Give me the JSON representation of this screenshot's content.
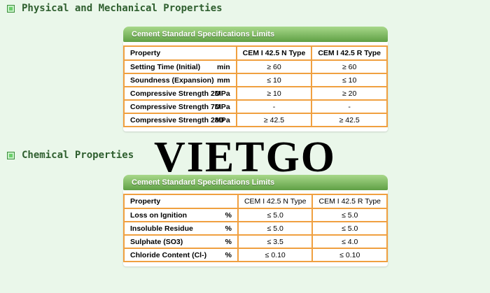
{
  "sections": {
    "physical": {
      "heading": "Physical and Mechanical Properties",
      "panel_title": "Cement Standard Specifications Limits",
      "columns": [
        "Property",
        "CEM I 42.5 N Type",
        "CEM I 42.5 R Type"
      ],
      "rows": [
        {
          "property": "Setting Time (Initial)",
          "unit": "min",
          "n": "≥ 60",
          "r": "≥ 60"
        },
        {
          "property": "Soundness (Expansion)",
          "unit": "mm",
          "n": "≤ 10",
          "r": "≤ 10"
        },
        {
          "property": "Compressive Strength 2D",
          "unit": "MPa",
          "n": "≥ 10",
          "r": "≥ 20"
        },
        {
          "property": "Compressive Strength 7D",
          "unit": "MPa",
          "n": "-",
          "r": "-"
        },
        {
          "property": "Compressive Strength 28D",
          "unit": "MPa",
          "n": "≥ 42.5",
          "r": "≥ 42.5"
        }
      ]
    },
    "chemical": {
      "heading": "Chemical Properties",
      "panel_title": "Cement Standard Specifications Limits",
      "columns": [
        "Property",
        "CEM I 42.5 N Type",
        "CEM I 42.5 R Type"
      ],
      "rows": [
        {
          "property": "Loss on Ignition",
          "unit": "%",
          "n": "≤ 5.0",
          "r": "≤ 5.0"
        },
        {
          "property": "Insoluble Residue",
          "unit": "%",
          "n": "≤ 5.0",
          "r": "≤ 5.0"
        },
        {
          "property": "Sulphate  (SO3)",
          "unit": "%",
          "n": "≤ 3.5",
          "r": "≤ 4.0"
        },
        {
          "property": "Chloride Content (Cl-)",
          "unit": "%",
          "n": "≤ 0.10",
          "r": "≤ 0.10"
        }
      ]
    }
  },
  "watermark": "VIETGO",
  "colors": {
    "background": "#eaf7ea",
    "heading_text": "#2f5f2f",
    "panel_header": "#5fa045",
    "table_border": "#f0a040"
  }
}
